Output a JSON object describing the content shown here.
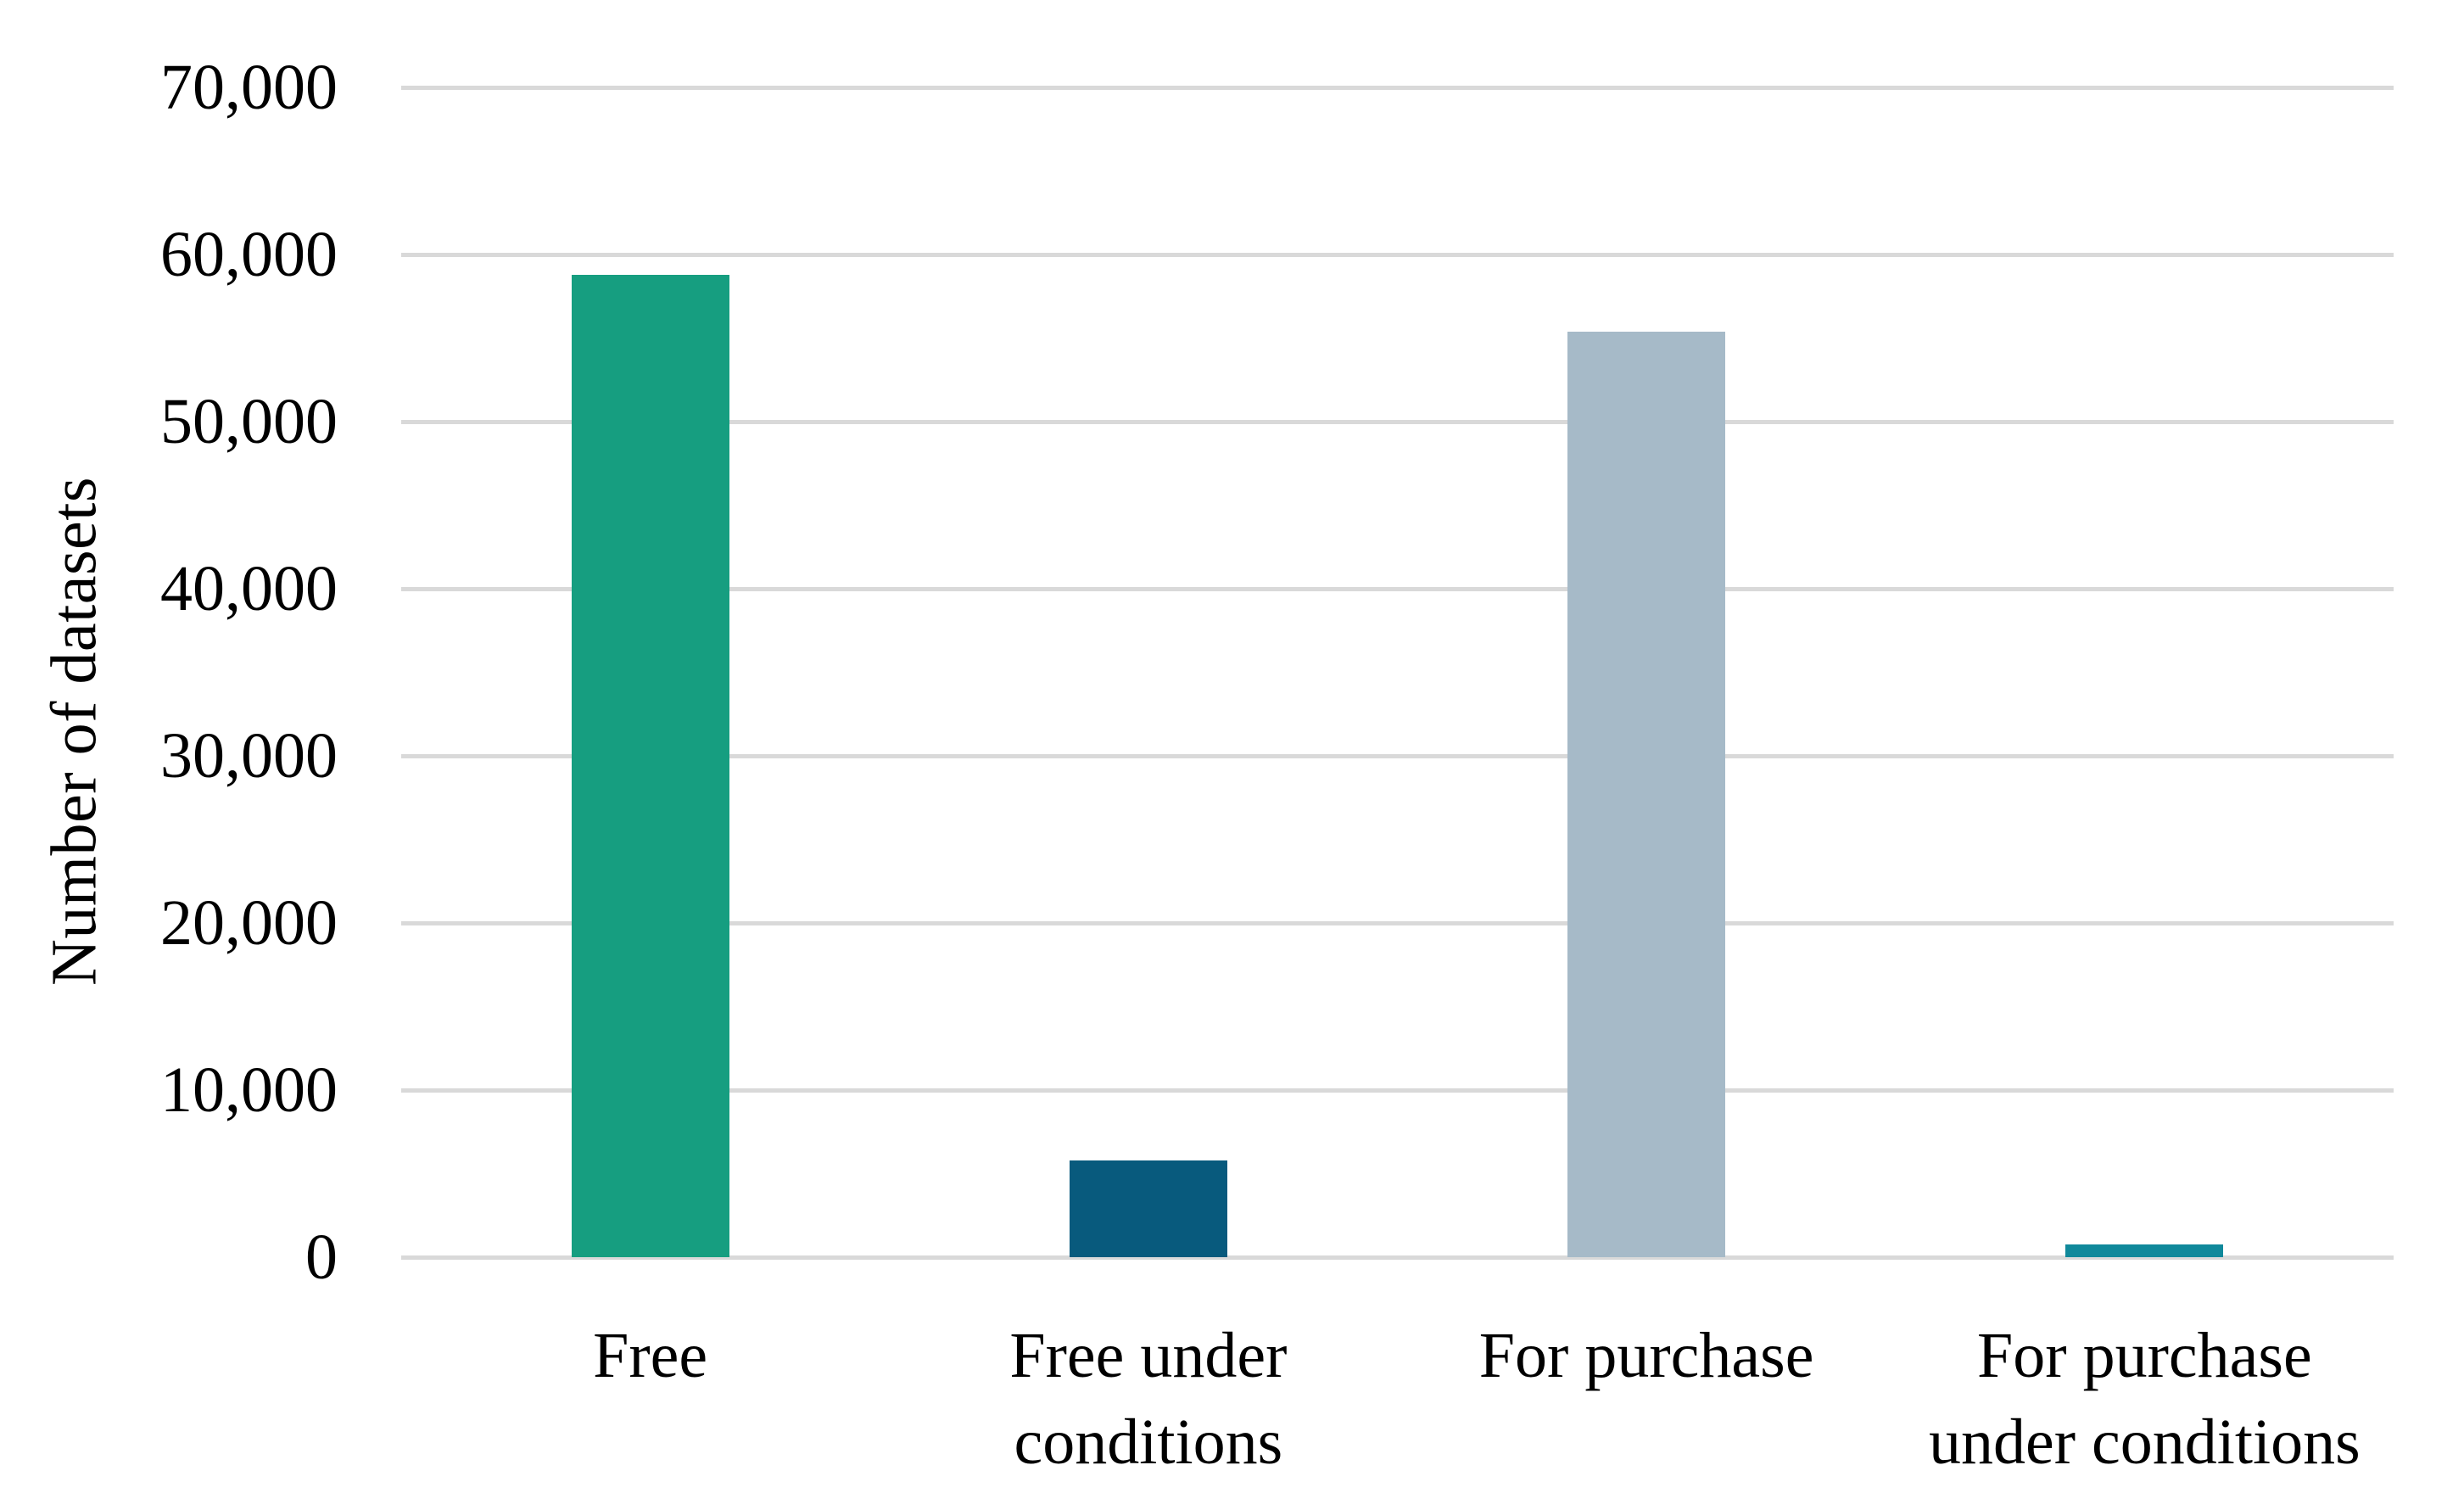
{
  "page": {
    "background": "#ffffff",
    "text_color": "#000000"
  },
  "chart_data": {
    "type": "bar",
    "title": "",
    "xlabel": "",
    "ylabel": "Number of datasets",
    "categories": [
      "Free",
      "Free under conditions",
      "For purchase",
      "For purchase under conditions"
    ],
    "category_lines": [
      [
        "Free"
      ],
      [
        "Free under",
        "conditions"
      ],
      [
        "For purchase"
      ],
      [
        "For purchase",
        "under conditions"
      ]
    ],
    "values": [
      58800,
      5800,
      55400,
      750
    ],
    "bar_colors": [
      "#169E80",
      "#085A7D",
      "#A6BAC8",
      "#10899B"
    ],
    "ylim": [
      0,
      70000
    ],
    "ytick_step": 10000,
    "ytick_values": [
      0,
      10000,
      20000,
      30000,
      40000,
      50000,
      60000,
      70000
    ],
    "ytick_labels": [
      "0",
      "10,000",
      "20,000",
      "30,000",
      "40,000",
      "50,000",
      "60,000",
      "70,000"
    ],
    "grid": true,
    "gridline_color": "#D9D9D9",
    "legend": "none"
  }
}
